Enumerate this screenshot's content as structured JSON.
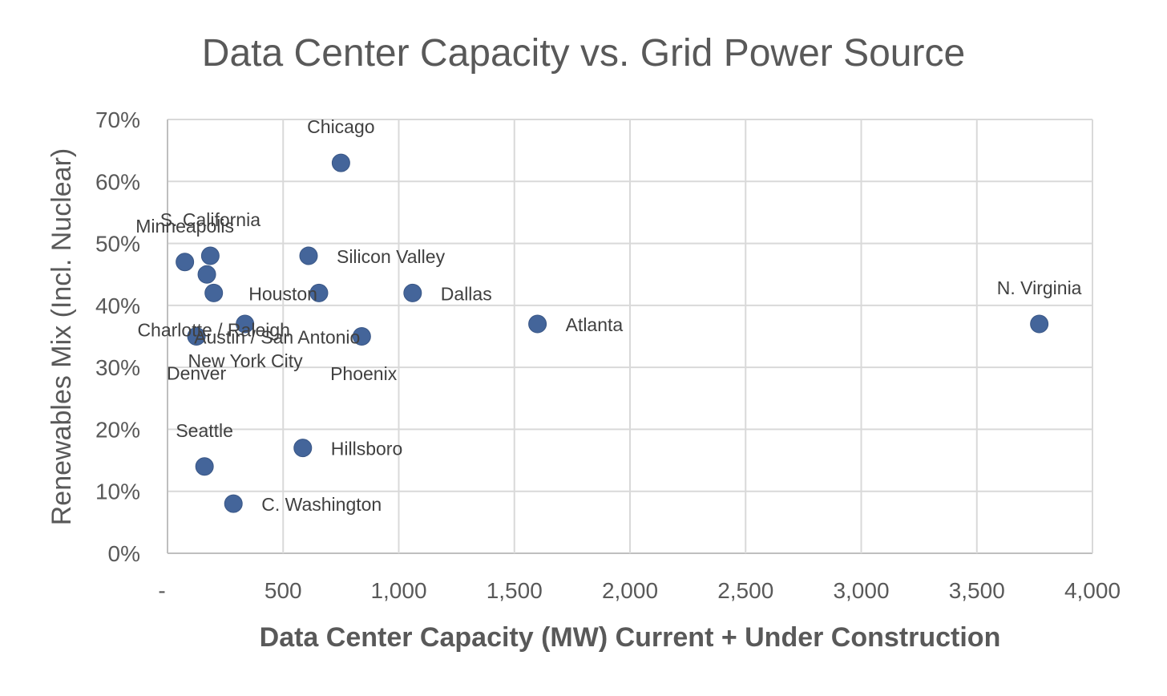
{
  "chart_data": {
    "type": "scatter",
    "title": "Data Center Capacity vs. Grid Power Source",
    "xlabel": "Data Center Capacity (MW) Current + Under Construction",
    "ylabel": "Renewables Mix (Incl. Nuclear)",
    "xlim": [
      0,
      4000
    ],
    "ylim": [
      0,
      0.7
    ],
    "xticks": [
      0,
      500,
      1000,
      1500,
      2000,
      2500,
      3000,
      3500,
      4000
    ],
    "xtick_labels": [
      "-",
      "500",
      "1,000",
      "1,500",
      "2,000",
      "2,500",
      "3,000",
      "3,500",
      "4,000"
    ],
    "yticks": [
      0,
      0.1,
      0.2,
      0.3,
      0.4,
      0.5,
      0.6,
      0.7
    ],
    "ytick_labels": [
      "0%",
      "10%",
      "20%",
      "30%",
      "40%",
      "50%",
      "60%",
      "70%"
    ],
    "grid": true,
    "points": [
      {
        "label": "Chicago",
        "x": 750,
        "y": 0.63,
        "label_pos": "above"
      },
      {
        "label": "S. California",
        "x": 185,
        "y": 0.48,
        "label_pos": "above"
      },
      {
        "label": "Minneapolis",
        "x": 75,
        "y": 0.47,
        "label_pos": "above"
      },
      {
        "label": "Silicon Valley",
        "x": 610,
        "y": 0.48,
        "label_pos": "right"
      },
      {
        "label": "Houston",
        "x": 655,
        "y": 0.42,
        "label_pos": "left"
      },
      {
        "label": "Dallas",
        "x": 1060,
        "y": 0.42,
        "label_pos": "right"
      },
      {
        "label": "Charlotte / Raleigh",
        "x": 200,
        "y": 0.42,
        "label_pos": "below"
      },
      {
        "label": "New York City",
        "x": 170,
        "y": 0.45,
        "label_pos": "below-far"
      },
      {
        "label": "Austin / San Antonio",
        "x": 840,
        "y": 0.35,
        "label_pos": "left"
      },
      {
        "label": "Phoenix",
        "x": 335,
        "y": 0.37,
        "label_pos": "below-far-right"
      },
      {
        "label": "Atlanta",
        "x": 1600,
        "y": 0.37,
        "label_pos": "right"
      },
      {
        "label": "N. Virginia",
        "x": 3770,
        "y": 0.37,
        "label_pos": "above"
      },
      {
        "label": "Denver",
        "x": 125,
        "y": 0.35,
        "label_pos": "below"
      },
      {
        "label": "Seattle",
        "x": 160,
        "y": 0.14,
        "label_pos": "above"
      },
      {
        "label": "Hillsboro",
        "x": 585,
        "y": 0.17,
        "label_pos": "right"
      },
      {
        "label": "C. Washington",
        "x": 285,
        "y": 0.08,
        "label_pos": "right"
      }
    ]
  }
}
